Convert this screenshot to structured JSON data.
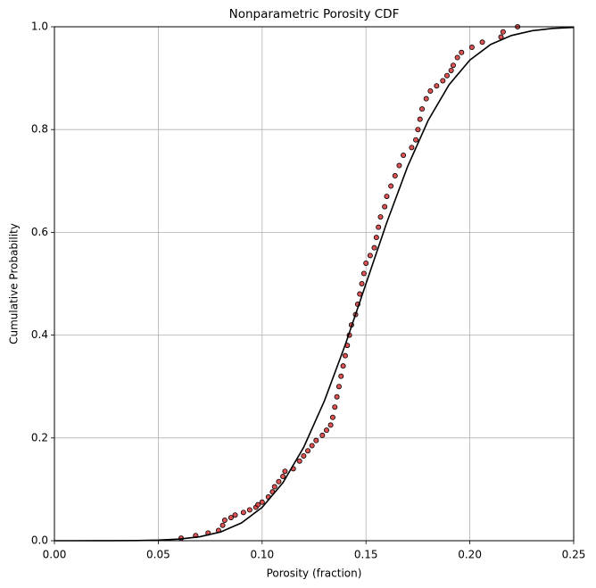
{
  "chart_data": {
    "type": "scatter",
    "title": "Nonparametric Porosity CDF",
    "x_label": "Porosity (fraction)",
    "y_label": "Cumulative Probability",
    "xlim": [
      0,
      0.25
    ],
    "ylim": [
      0,
      1
    ],
    "xticks": [
      {
        "value": 0,
        "label": "0.00"
      },
      0.05,
      {
        "value": 0.1,
        "label": "0.10"
      },
      0.15,
      {
        "value": 0.2,
        "label": "0.20"
      },
      0.25
    ],
    "yticks": [
      {
        "value": 0,
        "label": "0.0"
      },
      0.2,
      0.4,
      0.6,
      0.8,
      {
        "value": 1,
        "label": "1.0"
      }
    ],
    "grid": true,
    "series": [
      {
        "type": "scatter",
        "color": "#d62728",
        "edgecolor": "#000000",
        "x": [
          0.061,
          0.068,
          0.074,
          0.079,
          0.081,
          0.082,
          0.085,
          0.087,
          0.091,
          0.094,
          0.097,
          0.098,
          0.1,
          0.103,
          0.105,
          0.106,
          0.108,
          0.11,
          0.111,
          0.115,
          0.118,
          0.12,
          0.122,
          0.124,
          0.126,
          0.129,
          0.131,
          0.133,
          0.134,
          0.135,
          0.136,
          0.137,
          0.138,
          0.139,
          0.14,
          0.141,
          0.142,
          0.143,
          0.145,
          0.146,
          0.147,
          0.148,
          0.149,
          0.15,
          0.152,
          0.154,
          0.155,
          0.156,
          0.157,
          0.159,
          0.16,
          0.162,
          0.164,
          0.166,
          0.168,
          0.172,
          0.174,
          0.175,
          0.176,
          0.177,
          0.179,
          0.181,
          0.184,
          0.187,
          0.189,
          0.191,
          0.192,
          0.194,
          0.196,
          0.201,
          0.206,
          0.215,
          0.216,
          0.223
        ],
        "values": [
          0.005,
          0.01,
          0.015,
          0.02,
          0.03,
          0.04,
          0.045,
          0.05,
          0.055,
          0.06,
          0.065,
          0.07,
          0.075,
          0.085,
          0.095,
          0.105,
          0.115,
          0.125,
          0.135,
          0.14,
          0.155,
          0.165,
          0.175,
          0.185,
          0.195,
          0.205,
          0.215,
          0.225,
          0.24,
          0.26,
          0.28,
          0.3,
          0.32,
          0.34,
          0.36,
          0.38,
          0.4,
          0.42,
          0.44,
          0.46,
          0.48,
          0.5,
          0.52,
          0.54,
          0.555,
          0.57,
          0.59,
          0.61,
          0.63,
          0.65,
          0.67,
          0.69,
          0.71,
          0.73,
          0.75,
          0.765,
          0.78,
          0.8,
          0.82,
          0.84,
          0.86,
          0.875,
          0.885,
          0.895,
          0.905,
          0.915,
          0.925,
          0.94,
          0.95,
          0.96,
          0.97,
          0.98,
          0.99,
          1.0
        ]
      },
      {
        "type": "line",
        "color": "#000000",
        "x": [
          0,
          0.01,
          0.02,
          0.03,
          0.04,
          0.05,
          0.06,
          0.07,
          0.08,
          0.09,
          0.1,
          0.11,
          0.12,
          0.13,
          0.14,
          0.15,
          0.16,
          0.17,
          0.18,
          0.19,
          0.2,
          0.21,
          0.22,
          0.23,
          0.24,
          0.25
        ],
        "values": [
          0,
          1e-05,
          4e-05,
          0.00014,
          0.0004,
          0.0012,
          0.0032,
          0.0077,
          0.017,
          0.0345,
          0.0649,
          0.1128,
          0.1817,
          0.2723,
          0.381,
          0.5,
          0.619,
          0.7277,
          0.8183,
          0.8872,
          0.9351,
          0.9655,
          0.983,
          0.9923,
          0.9968,
          0.9988
        ]
      }
    ]
  }
}
